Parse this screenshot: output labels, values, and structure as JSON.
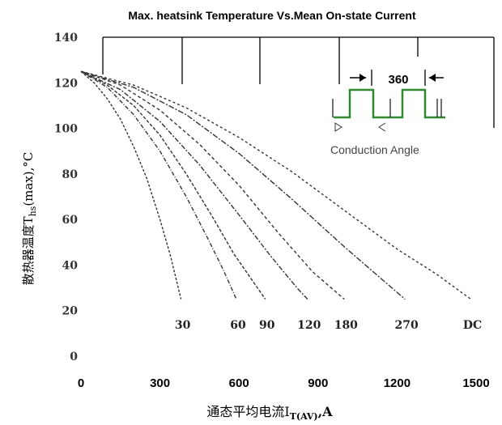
{
  "chart_data": {
    "type": "line",
    "title": "Max. heatsink Temperature Vs.Mean On-state Current",
    "xlabel_main": "通态平均电流I",
    "xlabel_sub": "T(AV)",
    "xlabel_unit": ",A",
    "ylabel_main": "散热器温度T",
    "ylabel_sub": "hs",
    "ylabel_unit": "(max),°C",
    "xlim": [
      0,
      1500
    ],
    "ylim": [
      0,
      140
    ],
    "x_ticks": [
      "0",
      "300",
      "600",
      "900",
      "1200",
      "1500"
    ],
    "y_ticks": [
      "0",
      "20",
      "40",
      "60",
      "80",
      "100",
      "120",
      "140"
    ],
    "series": [
      {
        "name": "30",
        "label": "30",
        "x": [
          0,
          50,
          100,
          150,
          200,
          250,
          300,
          340,
          380
        ],
        "y": [
          125,
          120,
          113,
          104,
          92,
          78,
          60,
          44,
          25
        ]
      },
      {
        "name": "60",
        "label": "60",
        "x": [
          0,
          100,
          200,
          300,
          400,
          480,
          540,
          590
        ],
        "y": [
          125,
          118,
          106,
          90,
          70,
          52,
          38,
          25
        ]
      },
      {
        "name": "90",
        "label": "90",
        "x": [
          0,
          100,
          200,
          300,
          400,
          500,
          580,
          640,
          700
        ],
        "y": [
          125,
          119,
          110,
          97,
          80,
          61,
          45,
          35,
          25
        ]
      },
      {
        "name": "120",
        "label": "120",
        "x": [
          0,
          150,
          300,
          450,
          600,
          720,
          820,
          860
        ],
        "y": [
          125,
          117,
          103,
          84,
          62,
          44,
          30,
          25
        ]
      },
      {
        "name": "180",
        "label": "180",
        "x": [
          0,
          150,
          300,
          450,
          600,
          750,
          880,
          1000
        ],
        "y": [
          125,
          119,
          108,
          93,
          75,
          54,
          37,
          25
        ]
      },
      {
        "name": "270",
        "label": "270",
        "x": [
          0,
          200,
          400,
          600,
          800,
          1000,
          1150,
          1230
        ],
        "y": [
          125,
          118,
          106,
          89,
          69,
          48,
          33,
          25
        ]
      },
      {
        "name": "DC",
        "label": "DC",
        "x": [
          0,
          200,
          400,
          600,
          800,
          1000,
          1200,
          1350,
          1480
        ],
        "y": [
          125,
          119,
          109,
          96,
          81,
          64,
          47,
          36,
          25
        ]
      }
    ],
    "inset": {
      "angle_label": "360",
      "caption": "Conduction Angle",
      "waveform_color": "#2f8a2f"
    },
    "grid": false
  }
}
